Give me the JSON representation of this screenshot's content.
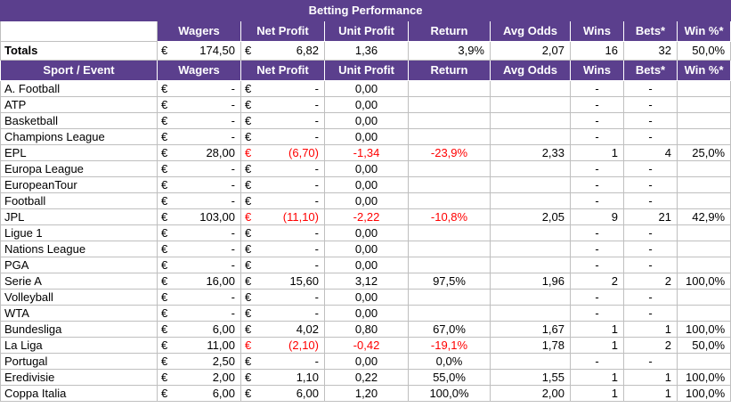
{
  "title": "Betting Performance",
  "headers": {
    "wagers": "Wagers",
    "net_profit": "Net Profit",
    "unit_profit": "Unit Profit",
    "return": "Return",
    "avg_odds": "Avg Odds",
    "wins": "Wins",
    "bets": "Bets*",
    "win_pct": "Win %*",
    "sport": "Sport / Event"
  },
  "currency": "€",
  "totals": {
    "label": "Totals",
    "wagers": "174,50",
    "net_profit": "6,82",
    "unit_profit": "1,36",
    "return": "3,9%",
    "avg_odds": "2,07",
    "wins": "16",
    "bets": "32",
    "win_pct": "50,0%"
  },
  "rows": [
    {
      "name": "A. Football",
      "wagers": "-",
      "net_profit": "-",
      "net_neg": false,
      "unit_profit": "0,00",
      "unit_neg": false,
      "return": "",
      "return_neg": false,
      "avg_odds": "",
      "wins": "-",
      "bets": "-",
      "win_pct": ""
    },
    {
      "name": "ATP",
      "wagers": "-",
      "net_profit": "-",
      "net_neg": false,
      "unit_profit": "0,00",
      "unit_neg": false,
      "return": "",
      "return_neg": false,
      "avg_odds": "",
      "wins": "-",
      "bets": "-",
      "win_pct": ""
    },
    {
      "name": "Basketball",
      "wagers": "-",
      "net_profit": "-",
      "net_neg": false,
      "unit_profit": "0,00",
      "unit_neg": false,
      "return": "",
      "return_neg": false,
      "avg_odds": "",
      "wins": "-",
      "bets": "-",
      "win_pct": ""
    },
    {
      "name": "Champions League",
      "wagers": "-",
      "net_profit": "-",
      "net_neg": false,
      "unit_profit": "0,00",
      "unit_neg": false,
      "return": "",
      "return_neg": false,
      "avg_odds": "",
      "wins": "-",
      "bets": "-",
      "win_pct": ""
    },
    {
      "name": "EPL",
      "wagers": "28,00",
      "net_profit": "(6,70)",
      "net_neg": true,
      "unit_profit": "-1,34",
      "unit_neg": true,
      "return": "-23,9%",
      "return_neg": true,
      "avg_odds": "2,33",
      "wins": "1",
      "bets": "4",
      "win_pct": "25,0%"
    },
    {
      "name": "Europa League",
      "wagers": "-",
      "net_profit": "-",
      "net_neg": false,
      "unit_profit": "0,00",
      "unit_neg": false,
      "return": "",
      "return_neg": false,
      "avg_odds": "",
      "wins": "-",
      "bets": "-",
      "win_pct": ""
    },
    {
      "name": "EuropeanTour",
      "wagers": "-",
      "net_profit": "-",
      "net_neg": false,
      "unit_profit": "0,00",
      "unit_neg": false,
      "return": "",
      "return_neg": false,
      "avg_odds": "",
      "wins": "-",
      "bets": "-",
      "win_pct": ""
    },
    {
      "name": "Football",
      "wagers": "-",
      "net_profit": "-",
      "net_neg": false,
      "unit_profit": "0,00",
      "unit_neg": false,
      "return": "",
      "return_neg": false,
      "avg_odds": "",
      "wins": "-",
      "bets": "-",
      "win_pct": ""
    },
    {
      "name": "JPL",
      "wagers": "103,00",
      "net_profit": "(11,10)",
      "net_neg": true,
      "unit_profit": "-2,22",
      "unit_neg": true,
      "return": "-10,8%",
      "return_neg": true,
      "avg_odds": "2,05",
      "wins": "9",
      "bets": "21",
      "win_pct": "42,9%"
    },
    {
      "name": "Ligue 1",
      "wagers": "-",
      "net_profit": "-",
      "net_neg": false,
      "unit_profit": "0,00",
      "unit_neg": false,
      "return": "",
      "return_neg": false,
      "avg_odds": "",
      "wins": "-",
      "bets": "-",
      "win_pct": ""
    },
    {
      "name": "Nations League",
      "wagers": "-",
      "net_profit": "-",
      "net_neg": false,
      "unit_profit": "0,00",
      "unit_neg": false,
      "return": "",
      "return_neg": false,
      "avg_odds": "",
      "wins": "-",
      "bets": "-",
      "win_pct": ""
    },
    {
      "name": "PGA",
      "wagers": "-",
      "net_profit": "-",
      "net_neg": false,
      "unit_profit": "0,00",
      "unit_neg": false,
      "return": "",
      "return_neg": false,
      "avg_odds": "",
      "wins": "-",
      "bets": "-",
      "win_pct": ""
    },
    {
      "name": "Serie A",
      "wagers": "16,00",
      "net_profit": "15,60",
      "net_neg": false,
      "unit_profit": "3,12",
      "unit_neg": false,
      "return": "97,5%",
      "return_neg": false,
      "avg_odds": "1,96",
      "wins": "2",
      "bets": "2",
      "win_pct": "100,0%"
    },
    {
      "name": "Volleyball",
      "wagers": "-",
      "net_profit": "-",
      "net_neg": false,
      "unit_profit": "0,00",
      "unit_neg": false,
      "return": "",
      "return_neg": false,
      "avg_odds": "",
      "wins": "-",
      "bets": "-",
      "win_pct": ""
    },
    {
      "name": "WTA",
      "wagers": "-",
      "net_profit": "-",
      "net_neg": false,
      "unit_profit": "0,00",
      "unit_neg": false,
      "return": "",
      "return_neg": false,
      "avg_odds": "",
      "wins": "-",
      "bets": "-",
      "win_pct": ""
    },
    {
      "name": "Bundesliga",
      "wagers": "6,00",
      "net_profit": "4,02",
      "net_neg": false,
      "unit_profit": "0,80",
      "unit_neg": false,
      "return": "67,0%",
      "return_neg": false,
      "avg_odds": "1,67",
      "wins": "1",
      "bets": "1",
      "win_pct": "100,0%"
    },
    {
      "name": "La Liga",
      "wagers": "11,00",
      "net_profit": "(2,10)",
      "net_neg": true,
      "unit_profit": "-0,42",
      "unit_neg": true,
      "return": "-19,1%",
      "return_neg": true,
      "avg_odds": "1,78",
      "wins": "1",
      "bets": "2",
      "win_pct": "50,0%"
    },
    {
      "name": "Portugal",
      "wagers": "2,50",
      "net_profit": "-",
      "net_neg": false,
      "unit_profit": "0,00",
      "unit_neg": false,
      "return": "0,0%",
      "return_neg": false,
      "avg_odds": "",
      "wins": "-",
      "bets": "-",
      "win_pct": ""
    },
    {
      "name": "Eredivisie",
      "wagers": "2,00",
      "net_profit": "1,10",
      "net_neg": false,
      "unit_profit": "0,22",
      "unit_neg": false,
      "return": "55,0%",
      "return_neg": false,
      "avg_odds": "1,55",
      "wins": "1",
      "bets": "1",
      "win_pct": "100,0%"
    },
    {
      "name": "Coppa Italia",
      "wagers": "6,00",
      "net_profit": "6,00",
      "net_neg": false,
      "unit_profit": "1,20",
      "unit_neg": false,
      "return": "100,0%",
      "return_neg": false,
      "avg_odds": "2,00",
      "wins": "1",
      "bets": "1",
      "win_pct": "100,0%"
    }
  ]
}
